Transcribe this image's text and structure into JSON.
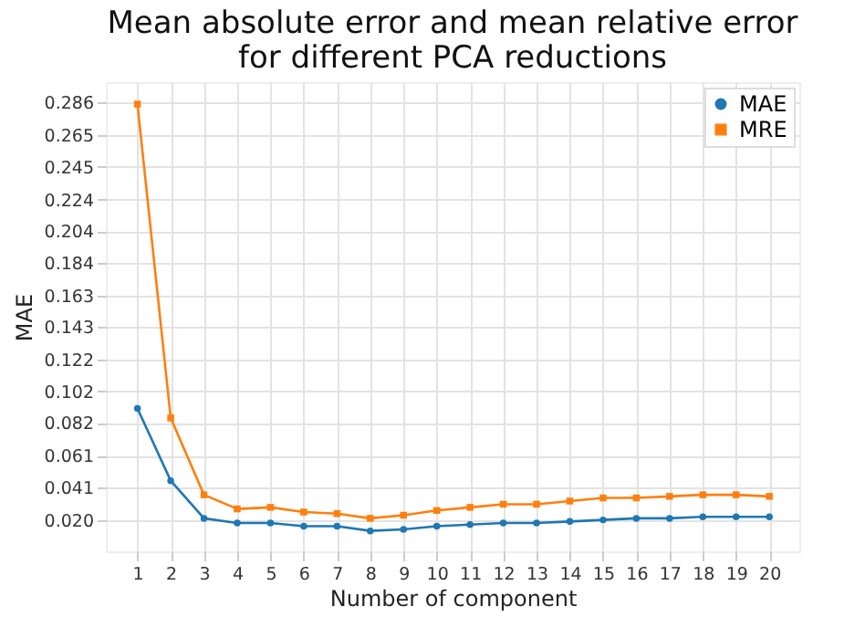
{
  "chart_data": {
    "type": "line",
    "title": "Mean absolute error and mean relative error\nfor different PCA reductions",
    "xlabel": "Number of component",
    "ylabel": "MAE",
    "x": [
      1,
      2,
      3,
      4,
      5,
      6,
      7,
      8,
      9,
      10,
      11,
      12,
      13,
      14,
      15,
      16,
      17,
      18,
      19,
      20
    ],
    "series": [
      {
        "name": "MAE",
        "color": "#1f77b4",
        "marker": "circle",
        "values": [
          0.091,
          0.045,
          0.021,
          0.018,
          0.018,
          0.016,
          0.016,
          0.013,
          0.014,
          0.016,
          0.017,
          0.018,
          0.018,
          0.019,
          0.02,
          0.021,
          0.021,
          0.022,
          0.022,
          0.022
        ]
      },
      {
        "name": "MRE",
        "color": "#ff7f0e",
        "marker": "square",
        "values": [
          0.285,
          0.085,
          0.036,
          0.027,
          0.028,
          0.025,
          0.024,
          0.021,
          0.023,
          0.026,
          0.028,
          0.03,
          0.03,
          0.032,
          0.034,
          0.034,
          0.035,
          0.036,
          0.036,
          0.035
        ]
      }
    ],
    "xlim": [
      0.05,
      20.9
    ],
    "xticks": [
      1,
      2,
      3,
      4,
      5,
      6,
      7,
      8,
      9,
      10,
      11,
      12,
      13,
      14,
      15,
      16,
      17,
      18,
      19,
      20
    ],
    "ylim": [
      0,
      0.299
    ],
    "yticks": [
      {
        "value": 0.02,
        "label": "0.020"
      },
      {
        "value": 0.041,
        "label": "0.041"
      },
      {
        "value": 0.061,
        "label": "0.061"
      },
      {
        "value": 0.082,
        "label": "0.082"
      },
      {
        "value": 0.102,
        "label": "0.102"
      },
      {
        "value": 0.122,
        "label": "0.122"
      },
      {
        "value": 0.143,
        "label": "0.143"
      },
      {
        "value": 0.163,
        "label": "0.163"
      },
      {
        "value": 0.184,
        "label": "0.184"
      },
      {
        "value": 0.204,
        "label": "0.204"
      },
      {
        "value": 0.224,
        "label": "0.224"
      },
      {
        "value": 0.245,
        "label": "0.245"
      },
      {
        "value": 0.265,
        "label": "0.265"
      },
      {
        "value": 0.286,
        "label": "0.286"
      }
    ],
    "grid": true,
    "legend": "top right",
    "line_style": "solid"
  }
}
